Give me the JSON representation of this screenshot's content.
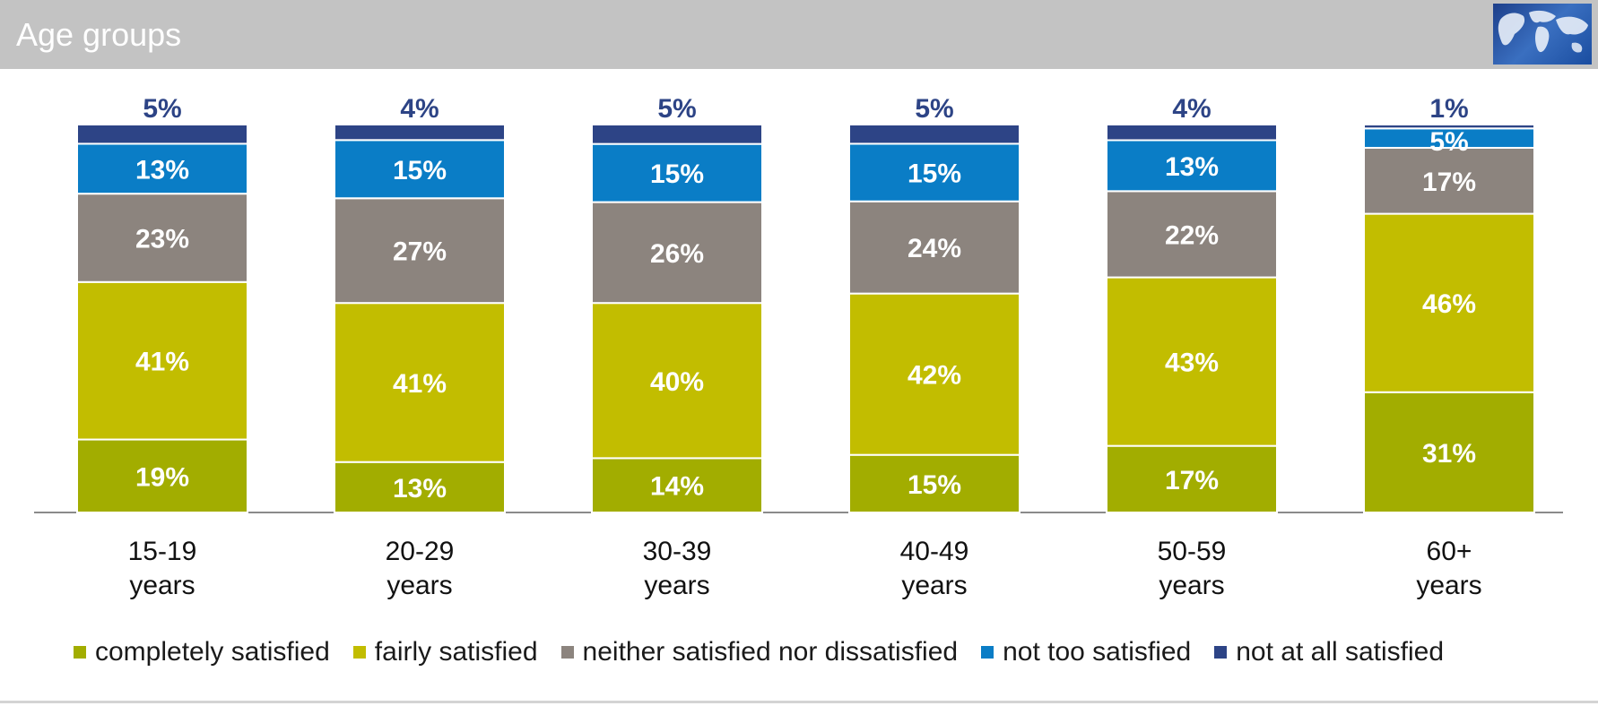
{
  "header": {
    "title": "Age groups"
  },
  "colors": {
    "header_bg": "#c3c3c3",
    "completely": "#a2ad00",
    "fairly": "#c2bd00",
    "neither": "#8c847e",
    "not_too": "#0a7dc6",
    "not_at_all": "#2d4486"
  },
  "chart_data": {
    "type": "bar",
    "stacked": true,
    "title": "Age groups",
    "categories": [
      "15-19 years",
      "20-29 years",
      "30-39 years",
      "40-49 years",
      "50-59 years",
      "60+ years"
    ],
    "category_lines": [
      [
        "15-19",
        "years"
      ],
      [
        "20-29",
        "years"
      ],
      [
        "30-39",
        "years"
      ],
      [
        "40-49",
        "years"
      ],
      [
        "50-59",
        "years"
      ],
      [
        "60+",
        "years"
      ]
    ],
    "series": [
      {
        "name": "completely satisfied",
        "color": "#a2ad00",
        "values": [
          19,
          13,
          14,
          15,
          17,
          31
        ]
      },
      {
        "name": "fairly satisfied",
        "color": "#c2bd00",
        "values": [
          41,
          41,
          40,
          42,
          43,
          46
        ]
      },
      {
        "name": "neither satisfied nor dissatisfied",
        "color": "#8c847e",
        "values": [
          23,
          27,
          26,
          24,
          22,
          17
        ]
      },
      {
        "name": "not too satisfied",
        "color": "#0a7dc6",
        "values": [
          13,
          15,
          15,
          15,
          13,
          5
        ]
      },
      {
        "name": "not at all satisfied",
        "color": "#2d4486",
        "values": [
          5,
          4,
          5,
          5,
          4,
          1
        ]
      }
    ],
    "value_suffix": "%",
    "legend_position": "bottom"
  }
}
